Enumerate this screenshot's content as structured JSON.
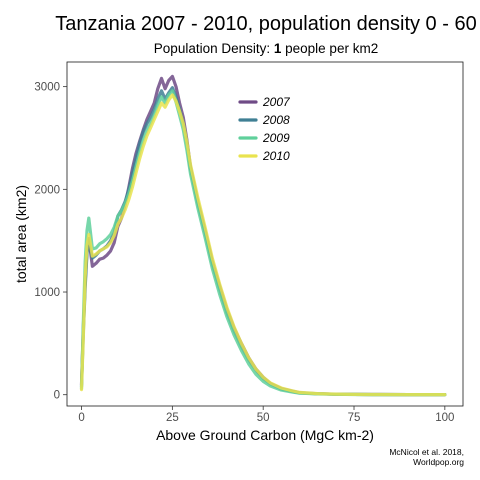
{
  "chart_data": {
    "type": "line",
    "title": "Tanzania 2007 - 2010, population density 0 - 60",
    "subtitle_prefix": "Population Density: ",
    "subtitle_bold": "1",
    "subtitle_suffix": " people per km2",
    "xlabel": "Above Ground Carbon (MgC km-2)",
    "ylabel": "total area (km2)",
    "xlim": [
      -4,
      105
    ],
    "ylim": [
      -110,
      3240
    ],
    "xticks": [
      0,
      25,
      50,
      75,
      100
    ],
    "yticks": [
      0,
      1000,
      2000,
      3000
    ],
    "grid": false,
    "legend_position": "top-center-right",
    "caption_lines": [
      "McNicol et al. 2018,",
      "Worldpop.org"
    ],
    "series": [
      {
        "name": "2007",
        "color": "#6f4b86",
        "x": [
          0,
          0.5,
          1,
          1.5,
          2,
          3,
          4,
          5,
          6,
          7,
          8,
          9,
          10,
          11,
          12,
          13,
          14,
          15,
          16,
          17,
          18,
          19,
          20,
          21,
          22,
          23,
          24,
          25,
          26,
          27,
          28,
          29,
          30,
          32,
          34,
          36,
          38,
          40,
          42,
          44,
          46,
          48,
          50,
          52,
          55,
          58,
          60,
          65,
          70,
          75,
          80,
          90,
          100
        ],
        "y": [
          100,
          650,
          1100,
          1400,
          1520,
          1250,
          1280,
          1320,
          1330,
          1360,
          1400,
          1480,
          1640,
          1720,
          1850,
          2020,
          2200,
          2350,
          2470,
          2580,
          2680,
          2760,
          2840,
          2980,
          3080,
          2980,
          3060,
          3100,
          3000,
          2840,
          2700,
          2480,
          2220,
          1880,
          1600,
          1300,
          1060,
          830,
          650,
          500,
          360,
          250,
          170,
          110,
          60,
          35,
          20,
          10,
          5,
          3,
          2,
          1,
          1
        ]
      },
      {
        "name": "2008",
        "color": "#3f7f94",
        "x": [
          0,
          0.5,
          1,
          1.5,
          2,
          3,
          4,
          5,
          6,
          7,
          8,
          9,
          10,
          11,
          12,
          13,
          14,
          15,
          16,
          17,
          18,
          19,
          20,
          21,
          22,
          23,
          24,
          25,
          26,
          27,
          28,
          29,
          30,
          32,
          34,
          36,
          38,
          40,
          42,
          44,
          46,
          48,
          50,
          52,
          55,
          58,
          60,
          65,
          70,
          75,
          80,
          90,
          100
        ],
        "y": [
          80,
          600,
          1050,
          1380,
          1500,
          1330,
          1360,
          1400,
          1420,
          1450,
          1500,
          1580,
          1740,
          1800,
          1880,
          2000,
          2150,
          2300,
          2450,
          2560,
          2640,
          2700,
          2780,
          2880,
          2960,
          2880,
          2940,
          2990,
          2900,
          2780,
          2640,
          2440,
          2200,
          1870,
          1580,
          1280,
          1030,
          800,
          620,
          470,
          340,
          240,
          160,
          105,
          55,
          32,
          18,
          9,
          5,
          3,
          2,
          1,
          1
        ]
      },
      {
        "name": "2009",
        "color": "#5fd09b",
        "x": [
          0,
          0.5,
          1,
          1.5,
          2,
          3,
          4,
          5,
          6,
          7,
          8,
          9,
          10,
          11,
          12,
          13,
          14,
          15,
          16,
          17,
          18,
          19,
          20,
          21,
          22,
          23,
          24,
          25,
          26,
          27,
          28,
          29,
          30,
          32,
          34,
          36,
          38,
          40,
          42,
          44,
          46,
          48,
          50,
          52,
          55,
          58,
          60,
          65,
          70,
          75,
          80,
          90,
          100
        ],
        "y": [
          60,
          700,
          1300,
          1600,
          1720,
          1420,
          1430,
          1470,
          1490,
          1520,
          1560,
          1630,
          1740,
          1790,
          1860,
          1960,
          2080,
          2220,
          2360,
          2480,
          2570,
          2640,
          2720,
          2820,
          2900,
          2840,
          2920,
          2960,
          2850,
          2720,
          2580,
          2380,
          2150,
          1820,
          1530,
          1230,
          980,
          760,
          580,
          430,
          300,
          200,
          130,
          85,
          45,
          25,
          15,
          8,
          4,
          2,
          1,
          1,
          1
        ]
      },
      {
        "name": "2010",
        "color": "#e9e34f",
        "x": [
          0,
          0.5,
          1,
          1.5,
          2,
          3,
          4,
          5,
          6,
          7,
          8,
          9,
          10,
          11,
          12,
          13,
          14,
          15,
          16,
          17,
          18,
          19,
          20,
          21,
          22,
          23,
          24,
          25,
          26,
          27,
          28,
          29,
          30,
          32,
          34,
          36,
          38,
          40,
          42,
          44,
          46,
          48,
          50,
          52,
          55,
          58,
          60,
          65,
          70,
          75,
          80,
          90,
          100
        ],
        "y": [
          50,
          550,
          1150,
          1450,
          1560,
          1350,
          1370,
          1400,
          1420,
          1440,
          1480,
          1550,
          1660,
          1720,
          1800,
          1900,
          2020,
          2160,
          2300,
          2420,
          2520,
          2600,
          2680,
          2760,
          2840,
          2800,
          2870,
          2920,
          2860,
          2760,
          2640,
          2460,
          2240,
          1920,
          1630,
          1330,
          1080,
          850,
          660,
          500,
          360,
          250,
          170,
          115,
          65,
          38,
          22,
          11,
          6,
          3,
          2,
          1,
          1
        ]
      }
    ]
  }
}
